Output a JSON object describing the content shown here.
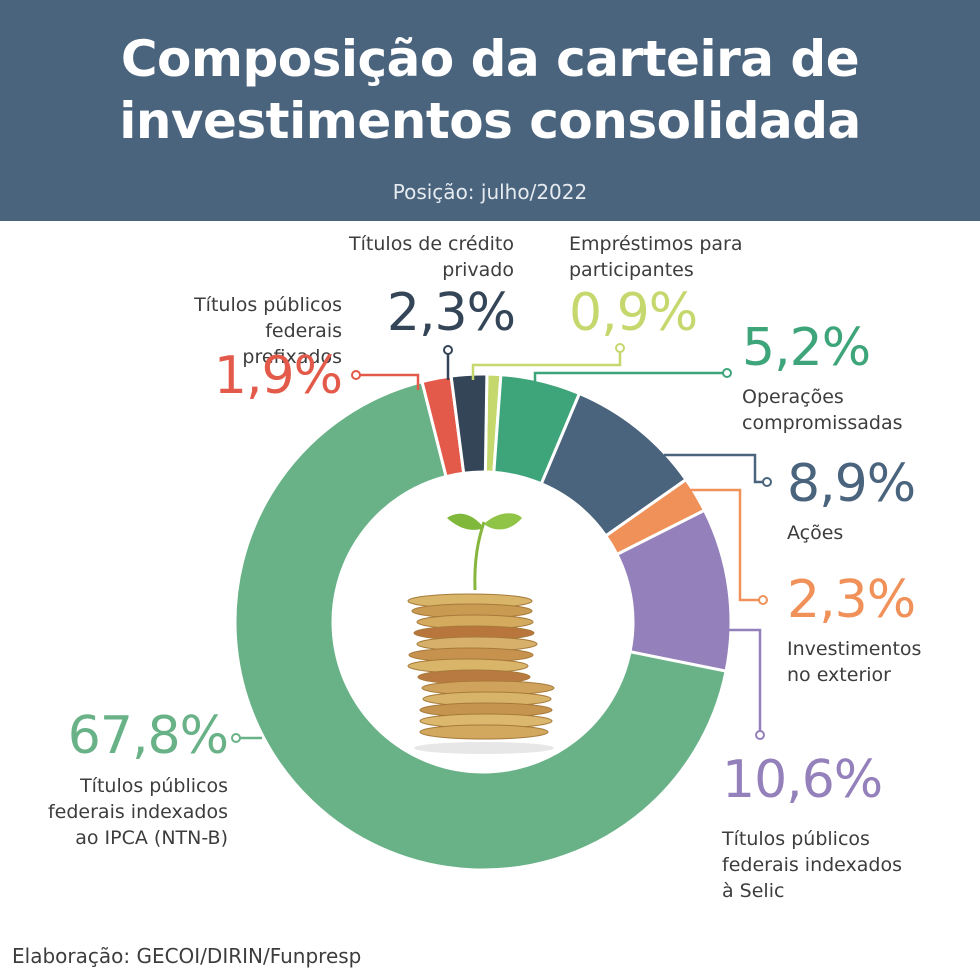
{
  "header": {
    "title": "Composição da carteira de\ninvestimentos consolidada",
    "subtitle": "Posição: julho/2022"
  },
  "chart_data": {
    "type": "pie",
    "variant": "donut",
    "title": "Composição da carteira de investimentos consolidada",
    "subtitle": "Posição: julho/2022",
    "unit": "%",
    "slices": [
      {
        "label": "Empréstimos para participantes",
        "value": 0.9,
        "display": "0,9%",
        "color": "#c5d86d"
      },
      {
        "label": "Operações compromissadas",
        "value": 5.2,
        "display": "5,2%",
        "color": "#3ea57a"
      },
      {
        "label": "Ações",
        "value": 8.9,
        "display": "8,9%",
        "color": "#4b647e"
      },
      {
        "label": "Investimentos no exterior",
        "value": 2.3,
        "display": "2,3%",
        "color": "#f0915a"
      },
      {
        "label": "Títulos públicos federais indexados à Selic",
        "value": 10.6,
        "display": "10,6%",
        "color": "#9480ba"
      },
      {
        "label": "Títulos públicos federais indexados ao IPCA (NTN-B)",
        "value": 67.8,
        "display": "67,8%",
        "color": "#69b287"
      },
      {
        "label": "Títulos públicos federais prefixados",
        "value": 1.9,
        "display": "1,9%",
        "color": "#e35a4a"
      },
      {
        "label": "Títulos de crédito privado",
        "value": 2.3,
        "display": "2,3%",
        "color": "#344558"
      }
    ]
  },
  "labels": {
    "emprestimos": {
      "text": "Empréstimos para\nparticipantes",
      "value": "0,9%"
    },
    "operacoes": {
      "text": "Operações\ncompromissadas",
      "value": "5,2%"
    },
    "acoes": {
      "text": "Ações",
      "value": "8,9%"
    },
    "exterior": {
      "text": "Investimentos\nno exterior",
      "value": "2,3%"
    },
    "selic": {
      "text": "Títulos públicos\nfederais indexados\nà Selic",
      "value": "10,6%"
    },
    "ipca": {
      "text": "Títulos públicos\nfederais indexados\nao IPCA (NTN-B)",
      "value": "67,8%"
    },
    "prefixados": {
      "text": "Títulos públicos\nfederais prefixados",
      "value": "1,9%"
    },
    "credito": {
      "text": "Títulos de crédito\nprivado",
      "value": "2,3%"
    }
  },
  "footer": "Elaboração: GECOI/DIRIN/Funpresp",
  "center_image": "coin-stack-with-sprout-icon"
}
